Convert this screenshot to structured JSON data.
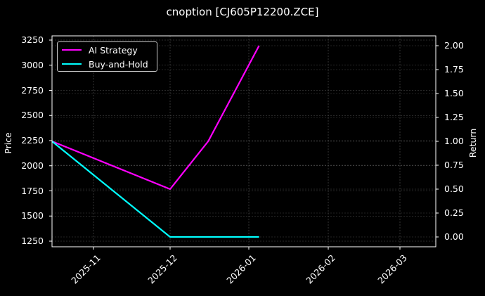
{
  "title": "cnoption [CJ605P12200.ZCE]",
  "legend": {
    "items": [
      {
        "label": "AI Strategy",
        "color": "#ff00ff"
      },
      {
        "label": "Buy-and-Hold",
        "color": "#00ffff"
      }
    ]
  },
  "axes": {
    "left_label": "Price",
    "right_label": "Return",
    "left_ticks": [
      "3250",
      "3000",
      "2750",
      "2500",
      "2250",
      "2000",
      "1750",
      "1500",
      "1250"
    ],
    "right_ticks": [
      "2.00",
      "1.75",
      "1.50",
      "1.25",
      "1.00",
      "0.75",
      "0.50",
      "0.25",
      "0.00"
    ],
    "x_ticks": [
      "2025-11",
      "2025-12",
      "2026-01",
      "2026-02",
      "2026-03"
    ]
  },
  "chart_data": {
    "type": "line",
    "title": "cnoption [CJ605P12200.ZCE]",
    "xlabel": "",
    "ylabel": "Price",
    "ylabel_right": "Return",
    "x_tick_labels": [
      "2025-11",
      "2025-12",
      "2026-01",
      "2026-02",
      "2026-03"
    ],
    "xlim": [
      "2025-10-15",
      "2026-03-15"
    ],
    "ylim": [
      1190,
      3280
    ],
    "ylim_right": [
      -0.1,
      2.1
    ],
    "grid": true,
    "legend_position": "upper left",
    "series": [
      {
        "name": "AI Strategy",
        "color": "#ff00ff",
        "axis": "right",
        "x": [
          "2025-10-15",
          "2025-12-01",
          "2025-12-16",
          "2026-01-05"
        ],
        "values": [
          1.0,
          0.5,
          1.0,
          2.0
        ]
      },
      {
        "name": "Buy-and-Hold",
        "color": "#00ffff",
        "axis": "right",
        "x": [
          "2025-10-15",
          "2025-12-01",
          "2025-12-16",
          "2026-01-05"
        ],
        "values": [
          1.0,
          0.0,
          0.0,
          0.0
        ]
      }
    ]
  }
}
